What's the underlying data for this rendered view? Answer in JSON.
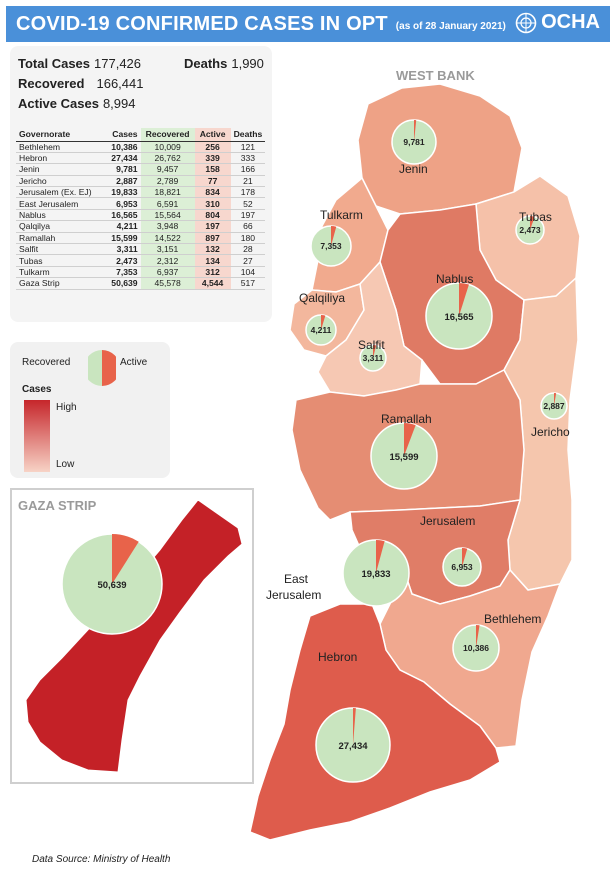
{
  "header": {
    "title": "COVID-19 CONFIRMED CASES IN OPT",
    "date": "(as of 28 January 2021)",
    "logo_text": "OCHA"
  },
  "summary": {
    "total_label": "Total Cases",
    "total_value": "177,426",
    "deaths_label": "Deaths",
    "deaths_value": "1,990",
    "recovered_label": "Recovered",
    "recovered_value": "166,441",
    "active_label": "Active Cases",
    "active_value": "8,994"
  },
  "table": {
    "headers": [
      "Governorate",
      "Cases",
      "Recovered",
      "Active",
      "Deaths"
    ],
    "rows": [
      {
        "name": "Bethlehem",
        "cases": "10,386",
        "recovered": "10,009",
        "active": "256",
        "deaths": "121"
      },
      {
        "name": "Hebron",
        "cases": "27,434",
        "recovered": "26,762",
        "active": "339",
        "deaths": "333"
      },
      {
        "name": "Jenin",
        "cases": "9,781",
        "recovered": "9,457",
        "active": "158",
        "deaths": "166"
      },
      {
        "name": "Jericho",
        "cases": "2,887",
        "recovered": "2,789",
        "active": "77",
        "deaths": "21"
      },
      {
        "name": "Jerusalem (Ex. EJ)",
        "cases": "19,833",
        "recovered": "18,821",
        "active": "834",
        "deaths": "178"
      },
      {
        "name": "East Jerusalem",
        "cases": "6,953",
        "recovered": "6,591",
        "active": "310",
        "deaths": "52"
      },
      {
        "name": "Nablus",
        "cases": "16,565",
        "recovered": "15,564",
        "active": "804",
        "deaths": "197"
      },
      {
        "name": "Qalqilya",
        "cases": "4,211",
        "recovered": "3,948",
        "active": "197",
        "deaths": "66"
      },
      {
        "name": "Ramallah",
        "cases": "15,599",
        "recovered": "14,522",
        "active": "897",
        "deaths": "180"
      },
      {
        "name": "Salfit",
        "cases": "3,311",
        "recovered": "3,151",
        "active": "132",
        "deaths": "28"
      },
      {
        "name": "Tubas",
        "cases": "2,473",
        "recovered": "2,312",
        "active": "134",
        "deaths": "27"
      },
      {
        "name": "Tulkarm",
        "cases": "7,353",
        "recovered": "6,937",
        "active": "312",
        "deaths": "104"
      },
      {
        "name": "Gaza Strip",
        "cases": "50,639",
        "recovered": "45,578",
        "active": "4,544",
        "deaths": "517"
      }
    ]
  },
  "legend": {
    "recovered_label": "Recovered",
    "active_label": "Active",
    "cases_title": "Cases",
    "high_label": "High",
    "low_label": "Low"
  },
  "colors": {
    "recovered": "#c9e5bf",
    "active": "#e8634a",
    "high": "#c6262b",
    "low": "#f7d3c6",
    "header": "#4a90d9"
  },
  "map": {
    "region_label": "WEST BANK",
    "gaza_title": "GAZA STRIP",
    "labels": {
      "jenin": "Jenin",
      "tubas": "Tubas",
      "tulkarm": "Tulkarm",
      "nablus": "Nablus",
      "qalqiliya": "Qalqiliya",
      "salfit": "Salfit",
      "ramallah": "Ramallah",
      "jericho": "Jericho",
      "jerusalem": "Jerusalem",
      "east_jerusalem_1": "East",
      "east_jerusalem_2": "Jerusalem",
      "bethlehem": "Bethlehem",
      "hebron": "Hebron"
    },
    "pies": [
      {
        "id": "jenin",
        "cases": 9781,
        "active": 158,
        "label": "9,781"
      },
      {
        "id": "tubas",
        "cases": 2473,
        "active": 134,
        "label": "2,473"
      },
      {
        "id": "tulkarm",
        "cases": 7353,
        "active": 312,
        "label": "7,353"
      },
      {
        "id": "nablus",
        "cases": 16565,
        "active": 804,
        "label": "16,565"
      },
      {
        "id": "qalqiliya",
        "cases": 4211,
        "active": 197,
        "label": "4,211"
      },
      {
        "id": "salfit",
        "cases": 3311,
        "active": 132,
        "label": "3,311"
      },
      {
        "id": "ramallah",
        "cases": 15599,
        "active": 897,
        "label": "15,599"
      },
      {
        "id": "jericho",
        "cases": 2887,
        "active": 77,
        "label": "2,887"
      },
      {
        "id": "jerusalem",
        "cases": 19833,
        "active": 834,
        "label": "19,833"
      },
      {
        "id": "east_jerusalem",
        "cases": 6953,
        "active": 310,
        "label": "6,953"
      },
      {
        "id": "bethlehem",
        "cases": 10386,
        "active": 256,
        "label": "10,386"
      },
      {
        "id": "hebron",
        "cases": 27434,
        "active": 339,
        "label": "27,434"
      },
      {
        "id": "gaza",
        "cases": 50639,
        "active": 4544,
        "label": "50,639"
      }
    ]
  },
  "source": "Data Source: Ministry of Health"
}
